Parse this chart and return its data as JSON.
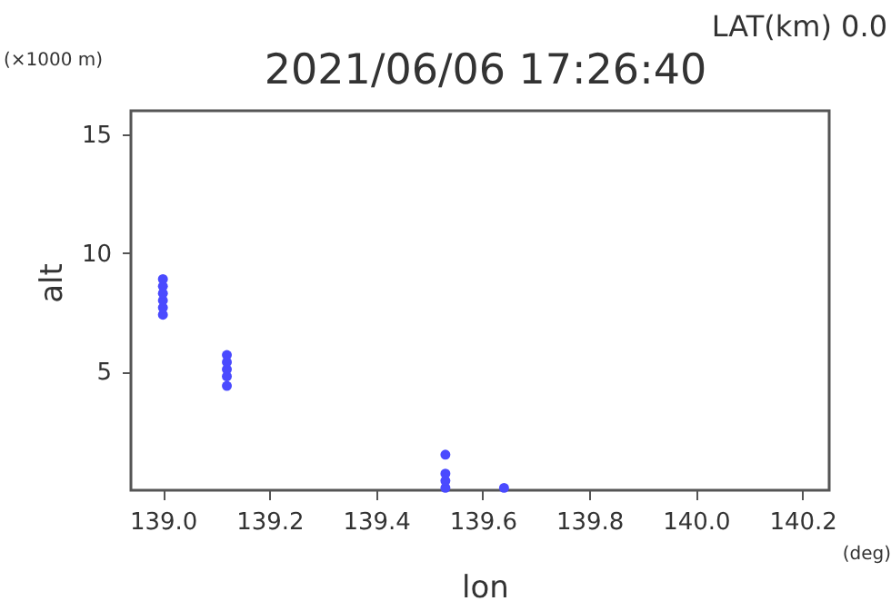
{
  "chart_data": {
    "type": "scatter",
    "title": "2021/06/06 17:26:40",
    "xlabel": "lon",
    "ylabel": "alt",
    "annotations": [
      "LAT(km) 0.0",
      "(×1000 m)",
      "(deg)"
    ],
    "x": [
      139.0,
      139.0,
      139.0,
      139.0,
      139.0,
      139.0,
      139.12,
      139.12,
      139.12,
      139.12,
      139.12,
      139.53,
      139.53,
      139.53,
      139.53,
      139.64
    ],
    "series": [
      {
        "color": "#4a4aff",
        "values": [
          7.4,
          7.7,
          8.0,
          8.3,
          8.6,
          8.9,
          4.4,
          4.8,
          5.1,
          5.4,
          5.7,
          1.5,
          0.1,
          0.4,
          0.7,
          0.1
        ]
      }
    ],
    "xlim": [
      138.94,
      140.25
    ],
    "xticks": [
      {
        "value": 139,
        "label": "139.0"
      },
      139.2,
      139.4,
      139.6,
      139.8,
      {
        "value": 140,
        "label": "140.0"
      },
      140.2
    ],
    "ylim": [
      0,
      16
    ],
    "yticks": [
      5,
      10,
      15
    ],
    "grid": false,
    "legend": false,
    "marker": "circle"
  }
}
